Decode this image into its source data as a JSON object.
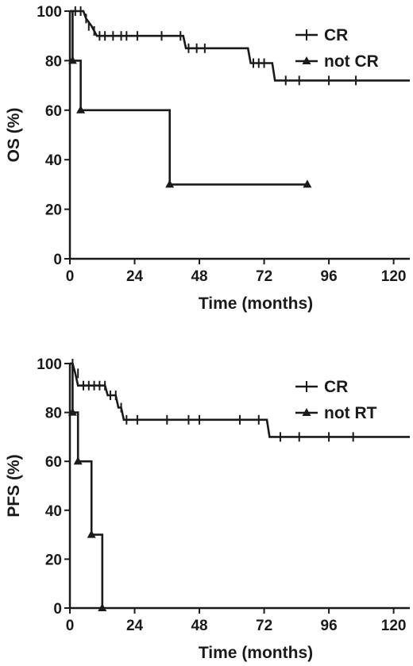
{
  "chart_data": [
    {
      "type": "line",
      "title": "",
      "xlabel": "Time (months)",
      "ylabel": "OS (%)",
      "xlim": [
        0,
        126
      ],
      "ylim": [
        0,
        100
      ],
      "x_ticks": [
        "0",
        "24",
        "48",
        "72",
        "96",
        "120"
      ],
      "y_ticks": [
        "0",
        "20",
        "40",
        "60",
        "80",
        "100"
      ],
      "legend": {
        "position": "top-right",
        "entries": [
          "CR",
          "not CR"
        ]
      },
      "series": [
        {
          "name": "CR",
          "marker": "censor-tick",
          "steps": [
            [
              0,
              100
            ],
            [
              5,
              100
            ],
            [
              6,
              97
            ],
            [
              8,
              94
            ],
            [
              10,
              90
            ],
            [
              42,
              90
            ],
            [
              43,
              85
            ],
            [
              66,
              85
            ],
            [
              67,
              79
            ],
            [
              75,
              79
            ],
            [
              76,
              72
            ],
            [
              126,
              72
            ]
          ],
          "censor_points": [
            [
              2,
              100
            ],
            [
              4,
              100
            ],
            [
              6,
              97
            ],
            [
              7,
              94
            ],
            [
              9,
              92
            ],
            [
              11,
              90
            ],
            [
              13,
              90
            ],
            [
              16,
              90
            ],
            [
              19,
              90
            ],
            [
              21,
              90
            ],
            [
              25,
              90
            ],
            [
              34,
              90
            ],
            [
              41,
              90
            ],
            [
              44,
              85
            ],
            [
              47,
              85
            ],
            [
              50,
              85
            ],
            [
              68,
              79
            ],
            [
              70,
              79
            ],
            [
              72,
              79
            ],
            [
              80,
              72
            ],
            [
              85,
              72
            ],
            [
              96,
              72
            ],
            [
              106,
              72
            ]
          ]
        },
        {
          "name": "not CR",
          "marker": "triangle",
          "steps": [
            [
              0,
              100
            ],
            [
              1,
              100
            ],
            [
              1,
              80
            ],
            [
              4,
              80
            ],
            [
              4,
              60
            ],
            [
              37,
              60
            ],
            [
              37,
              30
            ],
            [
              88,
              30
            ]
          ],
          "marker_points": [
            [
              1,
              80
            ],
            [
              4,
              60
            ],
            [
              37,
              30
            ],
            [
              88,
              30
            ]
          ]
        }
      ]
    },
    {
      "type": "line",
      "title": "",
      "xlabel": "Time (months)",
      "ylabel": "PFS (%)",
      "xlim": [
        0,
        126
      ],
      "ylim": [
        0,
        100
      ],
      "x_ticks": [
        "0",
        "24",
        "48",
        "72",
        "96",
        "120"
      ],
      "y_ticks": [
        "0",
        "20",
        "40",
        "60",
        "80",
        "100"
      ],
      "legend": {
        "position": "top-right",
        "entries": [
          "CR",
          "not RT"
        ]
      },
      "series": [
        {
          "name": "CR",
          "marker": "censor-tick",
          "steps": [
            [
              0,
              100
            ],
            [
              1,
              100
            ],
            [
              2,
              96
            ],
            [
              3,
              91
            ],
            [
              13,
              91
            ],
            [
              14,
              87
            ],
            [
              17,
              87
            ],
            [
              18,
              82
            ],
            [
              19,
              82
            ],
            [
              20,
              77
            ],
            [
              73,
              77
            ],
            [
              74,
              70
            ],
            [
              126,
              70
            ]
          ],
          "censor_points": [
            [
              1,
              100
            ],
            [
              3,
              96
            ],
            [
              5,
              91
            ],
            [
              7,
              91
            ],
            [
              9,
              91
            ],
            [
              11,
              91
            ],
            [
              13,
              91
            ],
            [
              15,
              87
            ],
            [
              17,
              87
            ],
            [
              19,
              82
            ],
            [
              21,
              77
            ],
            [
              25,
              77
            ],
            [
              36,
              77
            ],
            [
              44,
              77
            ],
            [
              48,
              77
            ],
            [
              63,
              77
            ],
            [
              70,
              77
            ],
            [
              78,
              70
            ],
            [
              85,
              70
            ],
            [
              96,
              70
            ],
            [
              105,
              70
            ]
          ]
        },
        {
          "name": "not RT",
          "marker": "triangle",
          "steps": [
            [
              0,
              100
            ],
            [
              1,
              100
            ],
            [
              1,
              80
            ],
            [
              3,
              80
            ],
            [
              3,
              60
            ],
            [
              8,
              60
            ],
            [
              8,
              30
            ],
            [
              12,
              30
            ],
            [
              12,
              0
            ]
          ],
          "marker_points": [
            [
              1,
              80
            ],
            [
              3,
              60
            ],
            [
              8,
              30
            ],
            [
              12,
              0
            ]
          ]
        }
      ]
    }
  ]
}
